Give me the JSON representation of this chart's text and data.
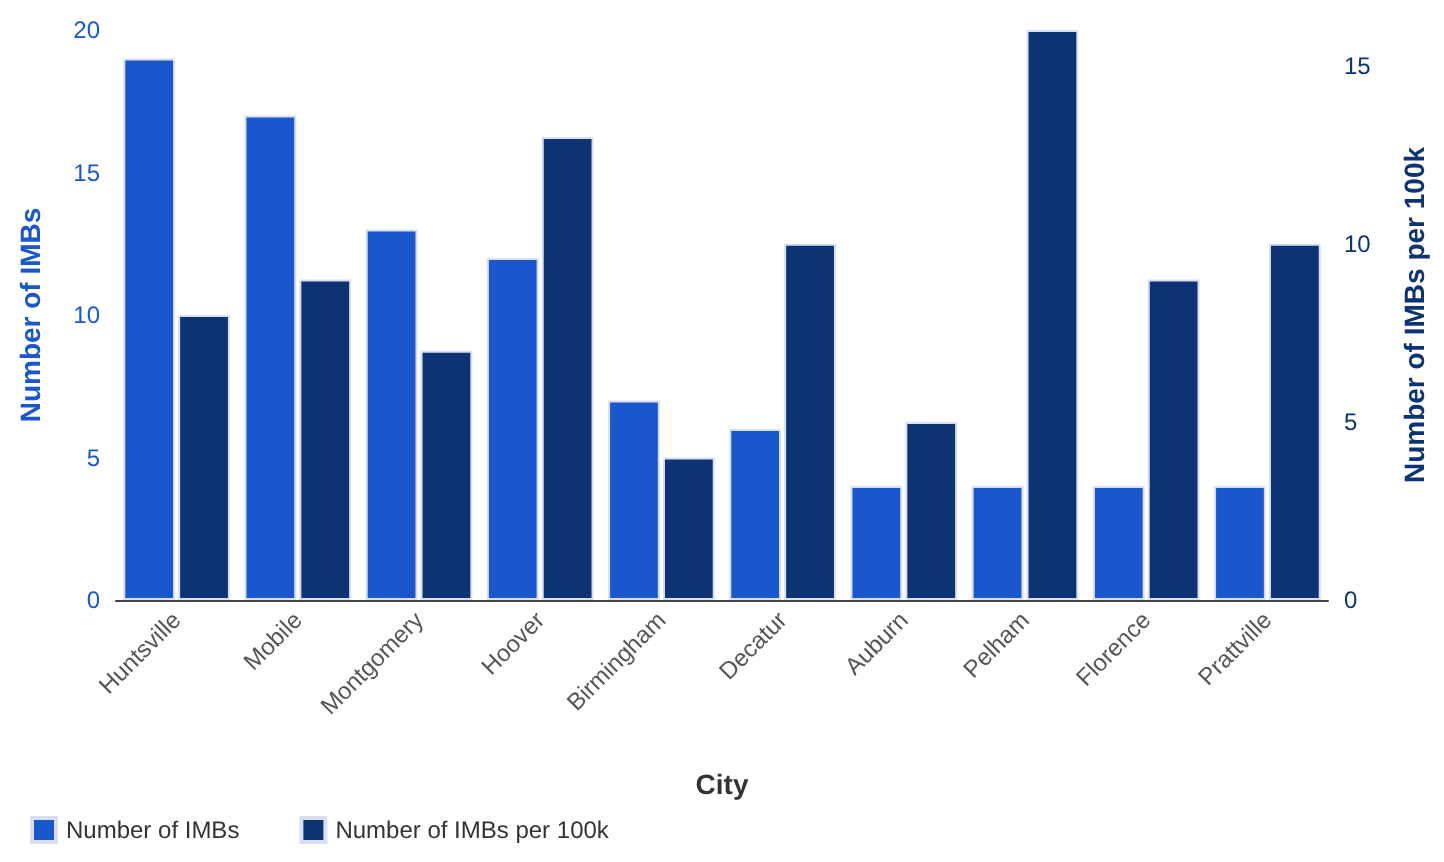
{
  "chart_data": {
    "type": "bar",
    "xlabel": "City",
    "ylabel": "Number of IMBs",
    "y2label": "Number of IMBs per 100k",
    "categories": [
      "Huntsville",
      "Mobile",
      "Montgomery",
      "Hoover",
      "Birmingham",
      "Decatur",
      "Auburn",
      "Pelham",
      "Florence",
      "Prattville"
    ],
    "series": [
      {
        "name": "Number of IMBs",
        "color": "#1a56cc",
        "values": [
          19,
          17,
          13,
          12,
          7,
          6,
          4,
          4,
          4,
          4
        ]
      },
      {
        "name": "Number of IMBs per 100k",
        "color": "#0d3373",
        "axis": "y2",
        "values": [
          8,
          9,
          7,
          13,
          4,
          10,
          5,
          16,
          9,
          10
        ]
      }
    ],
    "ylim": [
      0,
      20
    ],
    "yticks": [
      0,
      5,
      10,
      15,
      20
    ],
    "y2lim": [
      0,
      16
    ],
    "y2ticks": [
      0,
      5,
      10,
      15
    ],
    "grid": false,
    "legend": "bottom left"
  }
}
